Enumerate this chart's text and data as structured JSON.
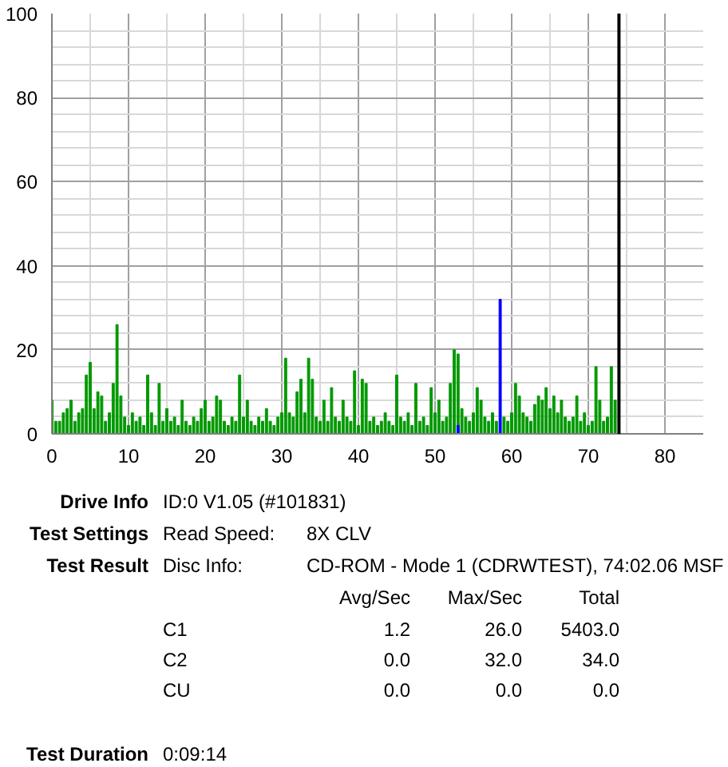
{
  "chart_data": {
    "type": "bar",
    "series": [
      {
        "color": "#009900",
        "x": [
          0,
          0.5,
          1,
          1.5,
          2,
          2.5,
          3,
          3.5,
          4,
          4.5,
          5,
          5.5,
          6,
          6.5,
          7,
          7.5,
          8,
          8.5,
          9,
          9.5,
          10,
          10.5,
          11,
          11.5,
          12,
          12.5,
          13,
          13.5,
          14,
          14.5,
          15,
          15.5,
          16,
          16.5,
          17,
          17.5,
          18,
          18.5,
          19,
          19.5,
          20,
          20.5,
          21,
          21.5,
          22,
          22.5,
          23,
          23.5,
          24,
          24.5,
          25,
          25.5,
          26,
          26.5,
          27,
          27.5,
          28,
          28.5,
          29,
          29.5,
          30,
          30.5,
          31,
          31.5,
          32,
          32.5,
          33,
          33.5,
          34,
          34.5,
          35,
          35.5,
          36,
          36.5,
          37,
          37.5,
          38,
          38.5,
          39,
          39.5,
          40,
          40.5,
          41,
          41.5,
          42,
          42.5,
          43,
          43.5,
          44,
          44.5,
          45,
          45.5,
          46,
          46.5,
          47,
          47.5,
          48,
          48.5,
          49,
          49.5,
          50,
          50.5,
          51,
          51.5,
          52,
          52.5,
          53,
          53.5,
          54,
          54.5,
          55,
          55.5,
          56,
          56.5,
          57,
          57.5,
          58,
          58.5,
          59,
          59.5,
          60,
          60.5,
          61,
          61.5,
          62,
          62.5,
          63,
          63.5,
          64,
          64.5,
          65,
          65.5,
          66,
          66.5,
          67,
          67.5,
          68,
          68.5,
          69,
          69.5,
          70,
          70.5,
          71,
          71.5,
          72,
          72.5,
          73,
          73.5
        ],
        "values": [
          8,
          3,
          3,
          5,
          6,
          8,
          3,
          5,
          6,
          14,
          17,
          6,
          10,
          9,
          3,
          5,
          12,
          26,
          9,
          4,
          2,
          5,
          3,
          4,
          2,
          14,
          5,
          2,
          12,
          3,
          6,
          3,
          4,
          2,
          8,
          3,
          2,
          4,
          3,
          6,
          8,
          3,
          4,
          9,
          8,
          3,
          2,
          4,
          3,
          14,
          4,
          8,
          3,
          2,
          4,
          3,
          6,
          3,
          2,
          4,
          5,
          18,
          5,
          4,
          10,
          13,
          5,
          18,
          13,
          4,
          3,
          8,
          3,
          11,
          4,
          3,
          8,
          4,
          3,
          15,
          2,
          13,
          12,
          3,
          4,
          2,
          3,
          5,
          3,
          2,
          14,
          4,
          3,
          5,
          2,
          12,
          3,
          4,
          2,
          11,
          5,
          8,
          3,
          4,
          12,
          20,
          19,
          6,
          4,
          3,
          5,
          11,
          8,
          4,
          3,
          5,
          3,
          null,
          4,
          3,
          5,
          12,
          9,
          5,
          4,
          3,
          7,
          9,
          8,
          11,
          6,
          9,
          5,
          8,
          4,
          3,
          4,
          9,
          3,
          5,
          2,
          3,
          16,
          8,
          3,
          4,
          16,
          8
        ]
      },
      {
        "color": "#0000ff",
        "x": [
          53,
          58.5
        ],
        "values": [
          2,
          32
        ]
      }
    ],
    "xlim": [
      0,
      85
    ],
    "xticks": [
      0,
      10,
      20,
      30,
      40,
      50,
      60,
      70,
      80
    ],
    "ylim": [
      0,
      100
    ],
    "yticks": [
      0,
      20,
      40,
      60,
      80,
      100
    ],
    "grid": true,
    "ref_lines": [
      {
        "axis": "x",
        "value": 74.0,
        "color": "#000000"
      }
    ],
    "annotations": [
      "Drive Info",
      "ID:0 V1.05 (#101831)",
      "Test Settings",
      "Read Speed:",
      "8X CLV",
      "Test Result",
      "Disc Info:",
      "CD-ROM - Mode 1 (CDRWTEST), 74:02.06 MSF",
      "Avg/Sec",
      "Max/Sec",
      "Total",
      "C1",
      "1.2",
      "26.0",
      "5403.0",
      "C2",
      "0.0",
      "32.0",
      "34.0",
      "CU",
      "0.0",
      "0.0",
      "0.0",
      "Test Duration",
      "0:09:14"
    ]
  }
}
